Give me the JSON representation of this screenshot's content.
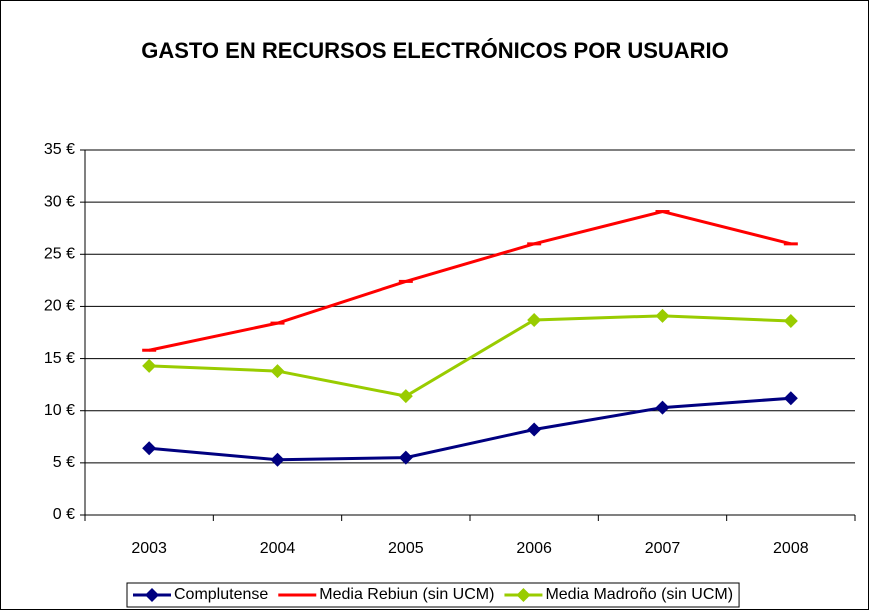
{
  "chart_data": {
    "type": "line",
    "title": "GASTO EN RECURSOS ELECTRÓNICOS POR USUARIO",
    "categories": [
      "2003",
      "2004",
      "2005",
      "2006",
      "2007",
      "2008"
    ],
    "series": [
      {
        "name": "Complutense",
        "color": "#000080",
        "marker": "diamond",
        "values": [
          6.4,
          5.3,
          5.5,
          8.2,
          10.3,
          11.2
        ]
      },
      {
        "name": "Media Rebiun (sin UCM)",
        "color": "#ff0000",
        "marker": "dash",
        "values": [
          15.8,
          18.4,
          22.4,
          26.0,
          29.1,
          26.0
        ]
      },
      {
        "name": "Media Madroño (sin UCM)",
        "color": "#99cc00",
        "marker": "diamond",
        "values": [
          14.3,
          13.8,
          11.4,
          18.7,
          19.1,
          18.6
        ]
      }
    ],
    "ylim": [
      0,
      35
    ],
    "yticks": [
      {
        "value": 0,
        "label": "0 €"
      },
      {
        "value": 5,
        "label": "5 €"
      },
      {
        "value": 10,
        "label": "10 €"
      },
      {
        "value": 15,
        "label": "15 €"
      },
      {
        "value": 20,
        "label": "20 €"
      },
      {
        "value": 25,
        "label": "25 €"
      },
      {
        "value": 30,
        "label": "30 €"
      },
      {
        "value": 35,
        "label": "35 €"
      }
    ],
    "grid": true,
    "legend": "bottom"
  }
}
